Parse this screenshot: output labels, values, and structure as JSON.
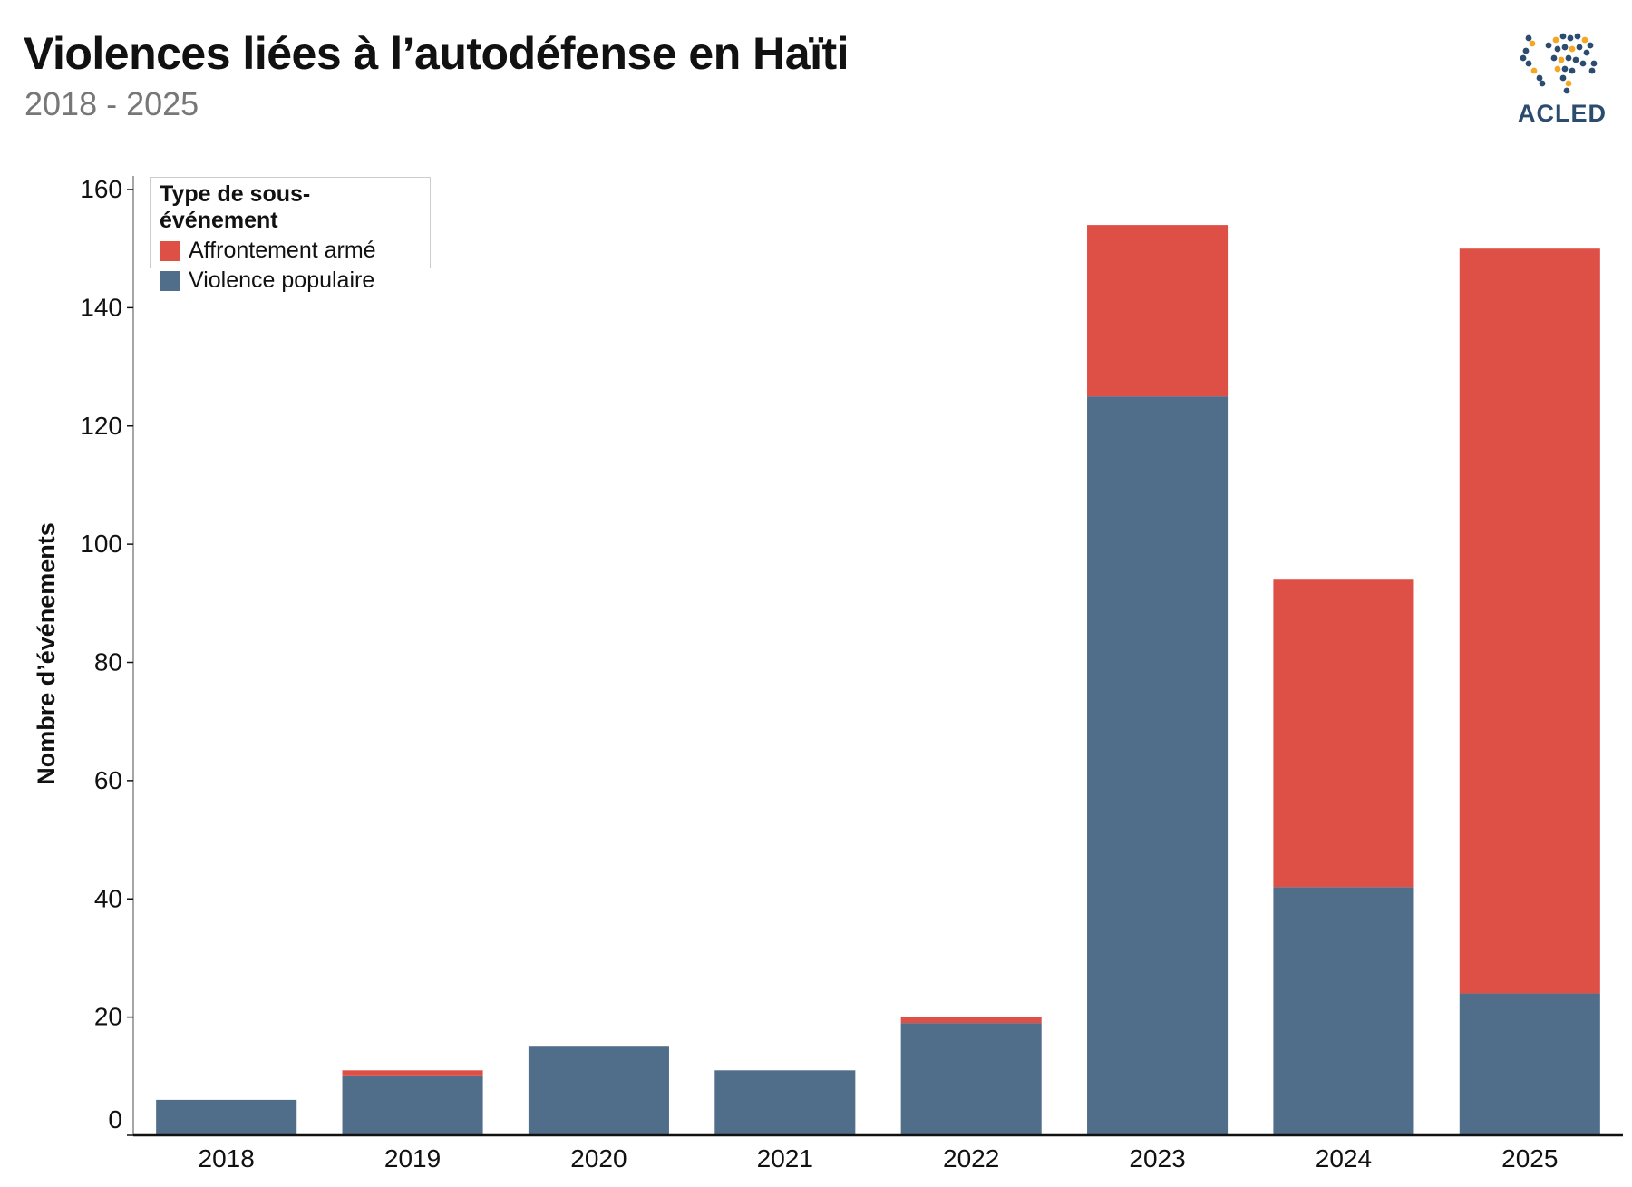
{
  "header": {
    "title": "Violences liées à l’autodéfense en Haïti",
    "subtitle": "2018 - 2025",
    "logo_text": "ACLED"
  },
  "colors": {
    "affrontement": "#DE4F45",
    "violence": "#506E8A",
    "logo_navy": "#2B4C6F",
    "logo_orange": "#F5A623"
  },
  "chart_data": {
    "type": "bar",
    "stacked": true,
    "title": "Violences liées à l’autodéfense en Haïti",
    "subtitle": "2018 - 2025",
    "xlabel": "",
    "ylabel": "Nombre d’événements",
    "ylim": [
      0,
      160
    ],
    "yticks": [
      0,
      20,
      40,
      60,
      80,
      100,
      120,
      140,
      160
    ],
    "grid": false,
    "legend_placement": "top-left",
    "legend_title": "Type de sous-événement",
    "categories": [
      "2018",
      "2019",
      "2020",
      "2021",
      "2022",
      "2023",
      "2024",
      "2025"
    ],
    "series": [
      {
        "name": "Violence populaire",
        "color": "#506E8A",
        "values": [
          6,
          10,
          15,
          11,
          19,
          125,
          42,
          24
        ]
      },
      {
        "name": "Affrontement armé",
        "color": "#DE4F45",
        "values": [
          0,
          1,
          0,
          0,
          1,
          29,
          52,
          126
        ]
      }
    ]
  }
}
